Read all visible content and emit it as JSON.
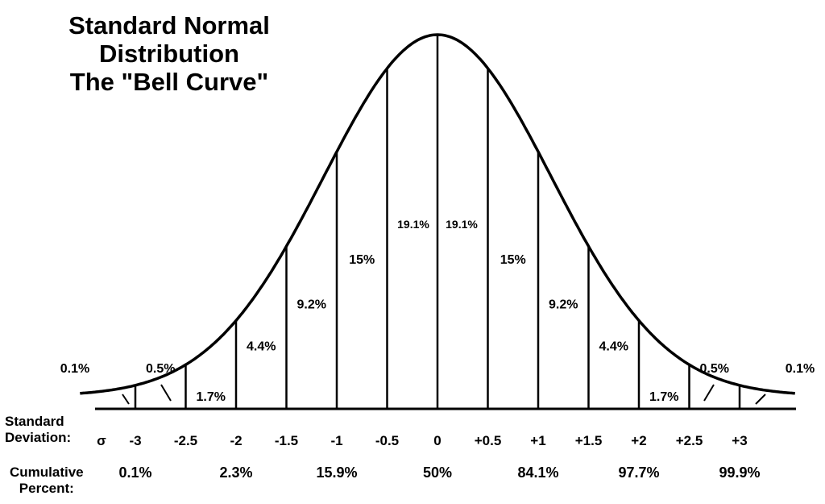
{
  "title": {
    "line1": "Standard Normal",
    "line2": "Distribution",
    "line3": "The \"Bell Curve\""
  },
  "labels": {
    "std_dev_line1": "Standard",
    "std_dev_line2": "Deviation:",
    "sigma": "σ",
    "cumulative_line1": "Cumulative",
    "cumulative_line2": "Percent:"
  },
  "colors": {
    "ink": "#000000",
    "background": "#ffffff"
  },
  "chart_data": {
    "type": "area",
    "title": "Standard Normal Distribution The \"Bell Curve\"",
    "xlabel": "Standard Deviation: σ",
    "ylabel": "",
    "xlim": [
      -3.55,
      3.55
    ],
    "x_ticks": [
      -3,
      -2.5,
      -2,
      -1.5,
      -1,
      -0.5,
      0,
      0.5,
      1,
      1.5,
      2,
      2.5,
      3
    ],
    "x_tick_labels": [
      "-3",
      "-2.5",
      "-2",
      "-1.5",
      "-1",
      "-0.5",
      "0",
      "+0.5",
      "+1",
      "+1.5",
      "+2",
      "+2.5",
      "+3"
    ],
    "divider_lines": [
      -3,
      -2.5,
      -2,
      -1.5,
      -1,
      -0.5,
      0,
      0.5,
      1,
      1.5,
      2,
      2.5,
      3
    ],
    "segments": [
      {
        "from": -4,
        "to": -3,
        "label": "0.1%",
        "value": 0.1
      },
      {
        "from": -3,
        "to": -2.5,
        "label": "0.5%",
        "value": 0.5
      },
      {
        "from": -2.5,
        "to": -2,
        "label": "1.7%",
        "value": 1.7
      },
      {
        "from": -2,
        "to": -1.5,
        "label": "4.4%",
        "value": 4.4
      },
      {
        "from": -1.5,
        "to": -1,
        "label": "9.2%",
        "value": 9.2
      },
      {
        "from": -1,
        "to": -0.5,
        "label": "15%",
        "value": 15
      },
      {
        "from": -0.5,
        "to": 0,
        "label": "19.1%",
        "value": 19.1
      },
      {
        "from": 0,
        "to": 0.5,
        "label": "19.1%",
        "value": 19.1
      },
      {
        "from": 0.5,
        "to": 1,
        "label": "15%",
        "value": 15
      },
      {
        "from": 1,
        "to": 1.5,
        "label": "9.2%",
        "value": 9.2
      },
      {
        "from": 1.5,
        "to": 2,
        "label": "4.4%",
        "value": 4.4
      },
      {
        "from": 2,
        "to": 2.5,
        "label": "1.7%",
        "value": 1.7
      },
      {
        "from": 2.5,
        "to": 3,
        "label": "0.5%",
        "value": 0.5
      },
      {
        "from": 3,
        "to": 4,
        "label": "0.1%",
        "value": 0.1
      }
    ],
    "cumulative_percent": [
      {
        "x": -3,
        "label": "0.1%"
      },
      {
        "x": -2,
        "label": "2.3%"
      },
      {
        "x": -1,
        "label": "15.9%"
      },
      {
        "x": 0,
        "label": "50%"
      },
      {
        "x": 1,
        "label": "84.1%"
      },
      {
        "x": 2,
        "label": "97.7%"
      },
      {
        "x": 3,
        "label": "99.9%"
      }
    ]
  }
}
